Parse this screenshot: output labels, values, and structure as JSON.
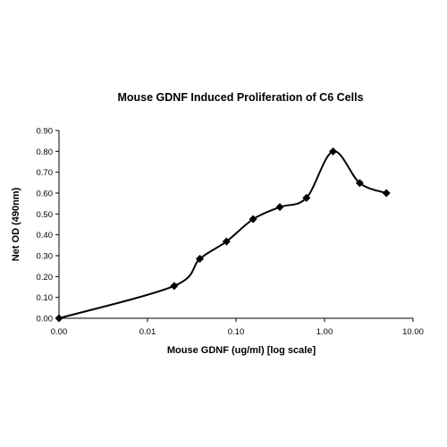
{
  "chart_data": {
    "type": "line",
    "title": "Mouse GDNF Induced Proliferation of C6 Cells",
    "xlabel": "Mouse GDNF (ug/ml) [log scale]",
    "ylabel": "Net OD (490nm)",
    "x_scale": "log",
    "x_ticks": [
      "0.00",
      "0.01",
      "0.10",
      "1.00",
      "10.00"
    ],
    "y_ticks": [
      "0.00",
      "0.10",
      "0.20",
      "0.30",
      "0.40",
      "0.50",
      "0.60",
      "0.70",
      "0.80",
      "0.90"
    ],
    "ylim": [
      0,
      0.9
    ],
    "grid": false,
    "marker": "diamond",
    "smooth": true,
    "x": [
      0.0,
      0.02,
      0.039,
      0.078,
      0.156,
      0.3125,
      0.625,
      1.25,
      2.5,
      5.0
    ],
    "y": [
      0.0,
      0.155,
      0.285,
      0.368,
      0.475,
      0.533,
      0.577,
      0.8,
      0.648,
      0.6
    ],
    "color": "#000000"
  }
}
